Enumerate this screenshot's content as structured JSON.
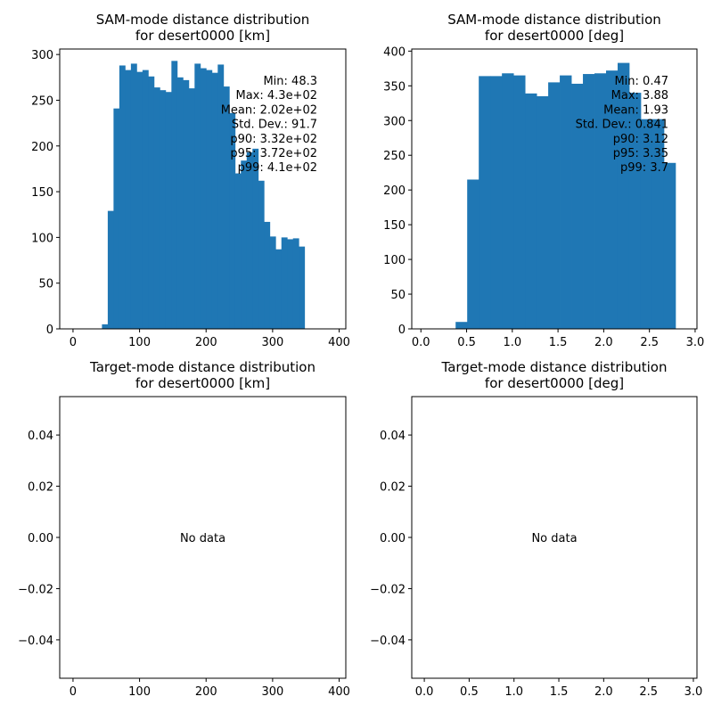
{
  "charts": [
    {
      "type": "bar",
      "title_line1": "SAM-mode distance distribution",
      "title_line2": "for desert0000 [km]",
      "xlim": [
        -20,
        410
      ],
      "ylim": [
        0,
        306
      ],
      "xticks": [
        {
          "v": 0,
          "label": "0"
        },
        {
          "v": 100,
          "label": "100"
        },
        {
          "v": 200,
          "label": "200"
        },
        {
          "v": 300,
          "label": "300"
        },
        {
          "v": 400,
          "label": "400"
        }
      ],
      "yticks": [
        {
          "v": 0,
          "label": "0"
        },
        {
          "v": 50,
          "label": "50"
        },
        {
          "v": 100,
          "label": "100"
        },
        {
          "v": 150,
          "label": "150"
        },
        {
          "v": 200,
          "label": "200"
        },
        {
          "v": 250,
          "label": "250"
        },
        {
          "v": 300,
          "label": "300"
        }
      ],
      "bin_start": 0,
      "bin_width": 8.7,
      "values": [
        0,
        0,
        0,
        0,
        0,
        5,
        129,
        241,
        288,
        283,
        290,
        281,
        283,
        276,
        264,
        261,
        259,
        293,
        275,
        272,
        263,
        290,
        285,
        283,
        280,
        289,
        265,
        236,
        170,
        184,
        193,
        197,
        162,
        117,
        101,
        87,
        100,
        98,
        99,
        90
      ],
      "stats": [
        "Min: 48.3",
        "Max: 4.3e+02",
        "Mean: 2.02e+02",
        "Std. Dev.: 91.7",
        "p90: 3.32e+02",
        "p95: 3.72e+02",
        "p99: 4.1e+02"
      ],
      "bar_color": "#1f77b4"
    },
    {
      "type": "bar",
      "title_line1": "SAM-mode distance distribution",
      "title_line2": "for desert0000 [deg]",
      "xlim": [
        -0.1,
        3.02
      ],
      "ylim": [
        0,
        403
      ],
      "xticks": [
        {
          "v": 0,
          "label": "0.0"
        },
        {
          "v": 0.5,
          "label": "0.5"
        },
        {
          "v": 1,
          "label": "1.0"
        },
        {
          "v": 1.5,
          "label": "1.5"
        },
        {
          "v": 2,
          "label": "2.0"
        },
        {
          "v": 2.5,
          "label": "2.5"
        },
        {
          "v": 3,
          "label": "3.0"
        }
      ],
      "yticks": [
        {
          "v": 0,
          "label": "0"
        },
        {
          "v": 50,
          "label": "50"
        },
        {
          "v": 100,
          "label": "100"
        },
        {
          "v": 150,
          "label": "150"
        },
        {
          "v": 200,
          "label": "200"
        },
        {
          "v": 250,
          "label": "250"
        },
        {
          "v": 300,
          "label": "300"
        },
        {
          "v": 350,
          "label": "350"
        },
        {
          "v": 400,
          "label": "400"
        }
      ],
      "bin_start": 0,
      "bin_width": 0.1266,
      "values": [
        0,
        0,
        0,
        10,
        215,
        364,
        364,
        368,
        365,
        339,
        335,
        355,
        365,
        353,
        367,
        368,
        372,
        383,
        340,
        302,
        302,
        239
      ],
      "stats": [
        "Min: 0.47",
        "Max: 3.88",
        "Mean: 1.93",
        "Std. Dev.: 0.841",
        "p90: 3.12",
        "p95: 3.35",
        "p99: 3.7"
      ],
      "bar_color": "#1f77b4"
    },
    {
      "type": "empty",
      "title_line1": "Target-mode distance distribution",
      "title_line2": "for desert0000 [km]",
      "xlim": [
        -20,
        410
      ],
      "ylim": [
        -0.055,
        0.055
      ],
      "xticks": [
        {
          "v": 0,
          "label": "0"
        },
        {
          "v": 100,
          "label": "100"
        },
        {
          "v": 200,
          "label": "200"
        },
        {
          "v": 300,
          "label": "300"
        },
        {
          "v": 400,
          "label": "400"
        }
      ],
      "yticks": [
        {
          "v": -0.04,
          "label": "−0.04"
        },
        {
          "v": -0.02,
          "label": "−0.02"
        },
        {
          "v": 0,
          "label": "0.00"
        },
        {
          "v": 0.02,
          "label": "0.02"
        },
        {
          "v": 0.04,
          "label": "0.04"
        }
      ],
      "message": "No data"
    },
    {
      "type": "empty",
      "title_line1": "Target-mode distance distribution",
      "title_line2": "for desert0000 [deg]",
      "xlim": [
        -0.14,
        3.04
      ],
      "ylim": [
        -0.055,
        0.055
      ],
      "xticks": [
        {
          "v": 0,
          "label": "0.0"
        },
        {
          "v": 0.5,
          "label": "0.5"
        },
        {
          "v": 1,
          "label": "1.0"
        },
        {
          "v": 1.5,
          "label": "1.5"
        },
        {
          "v": 2,
          "label": "2.0"
        },
        {
          "v": 2.5,
          "label": "2.5"
        },
        {
          "v": 3,
          "label": "3.0"
        }
      ],
      "yticks": [
        {
          "v": -0.04,
          "label": "−0.04"
        },
        {
          "v": -0.02,
          "label": "−0.02"
        },
        {
          "v": 0,
          "label": "0.00"
        },
        {
          "v": 0.02,
          "label": "0.02"
        },
        {
          "v": 0.04,
          "label": "0.04"
        }
      ],
      "message": "No data"
    }
  ]
}
